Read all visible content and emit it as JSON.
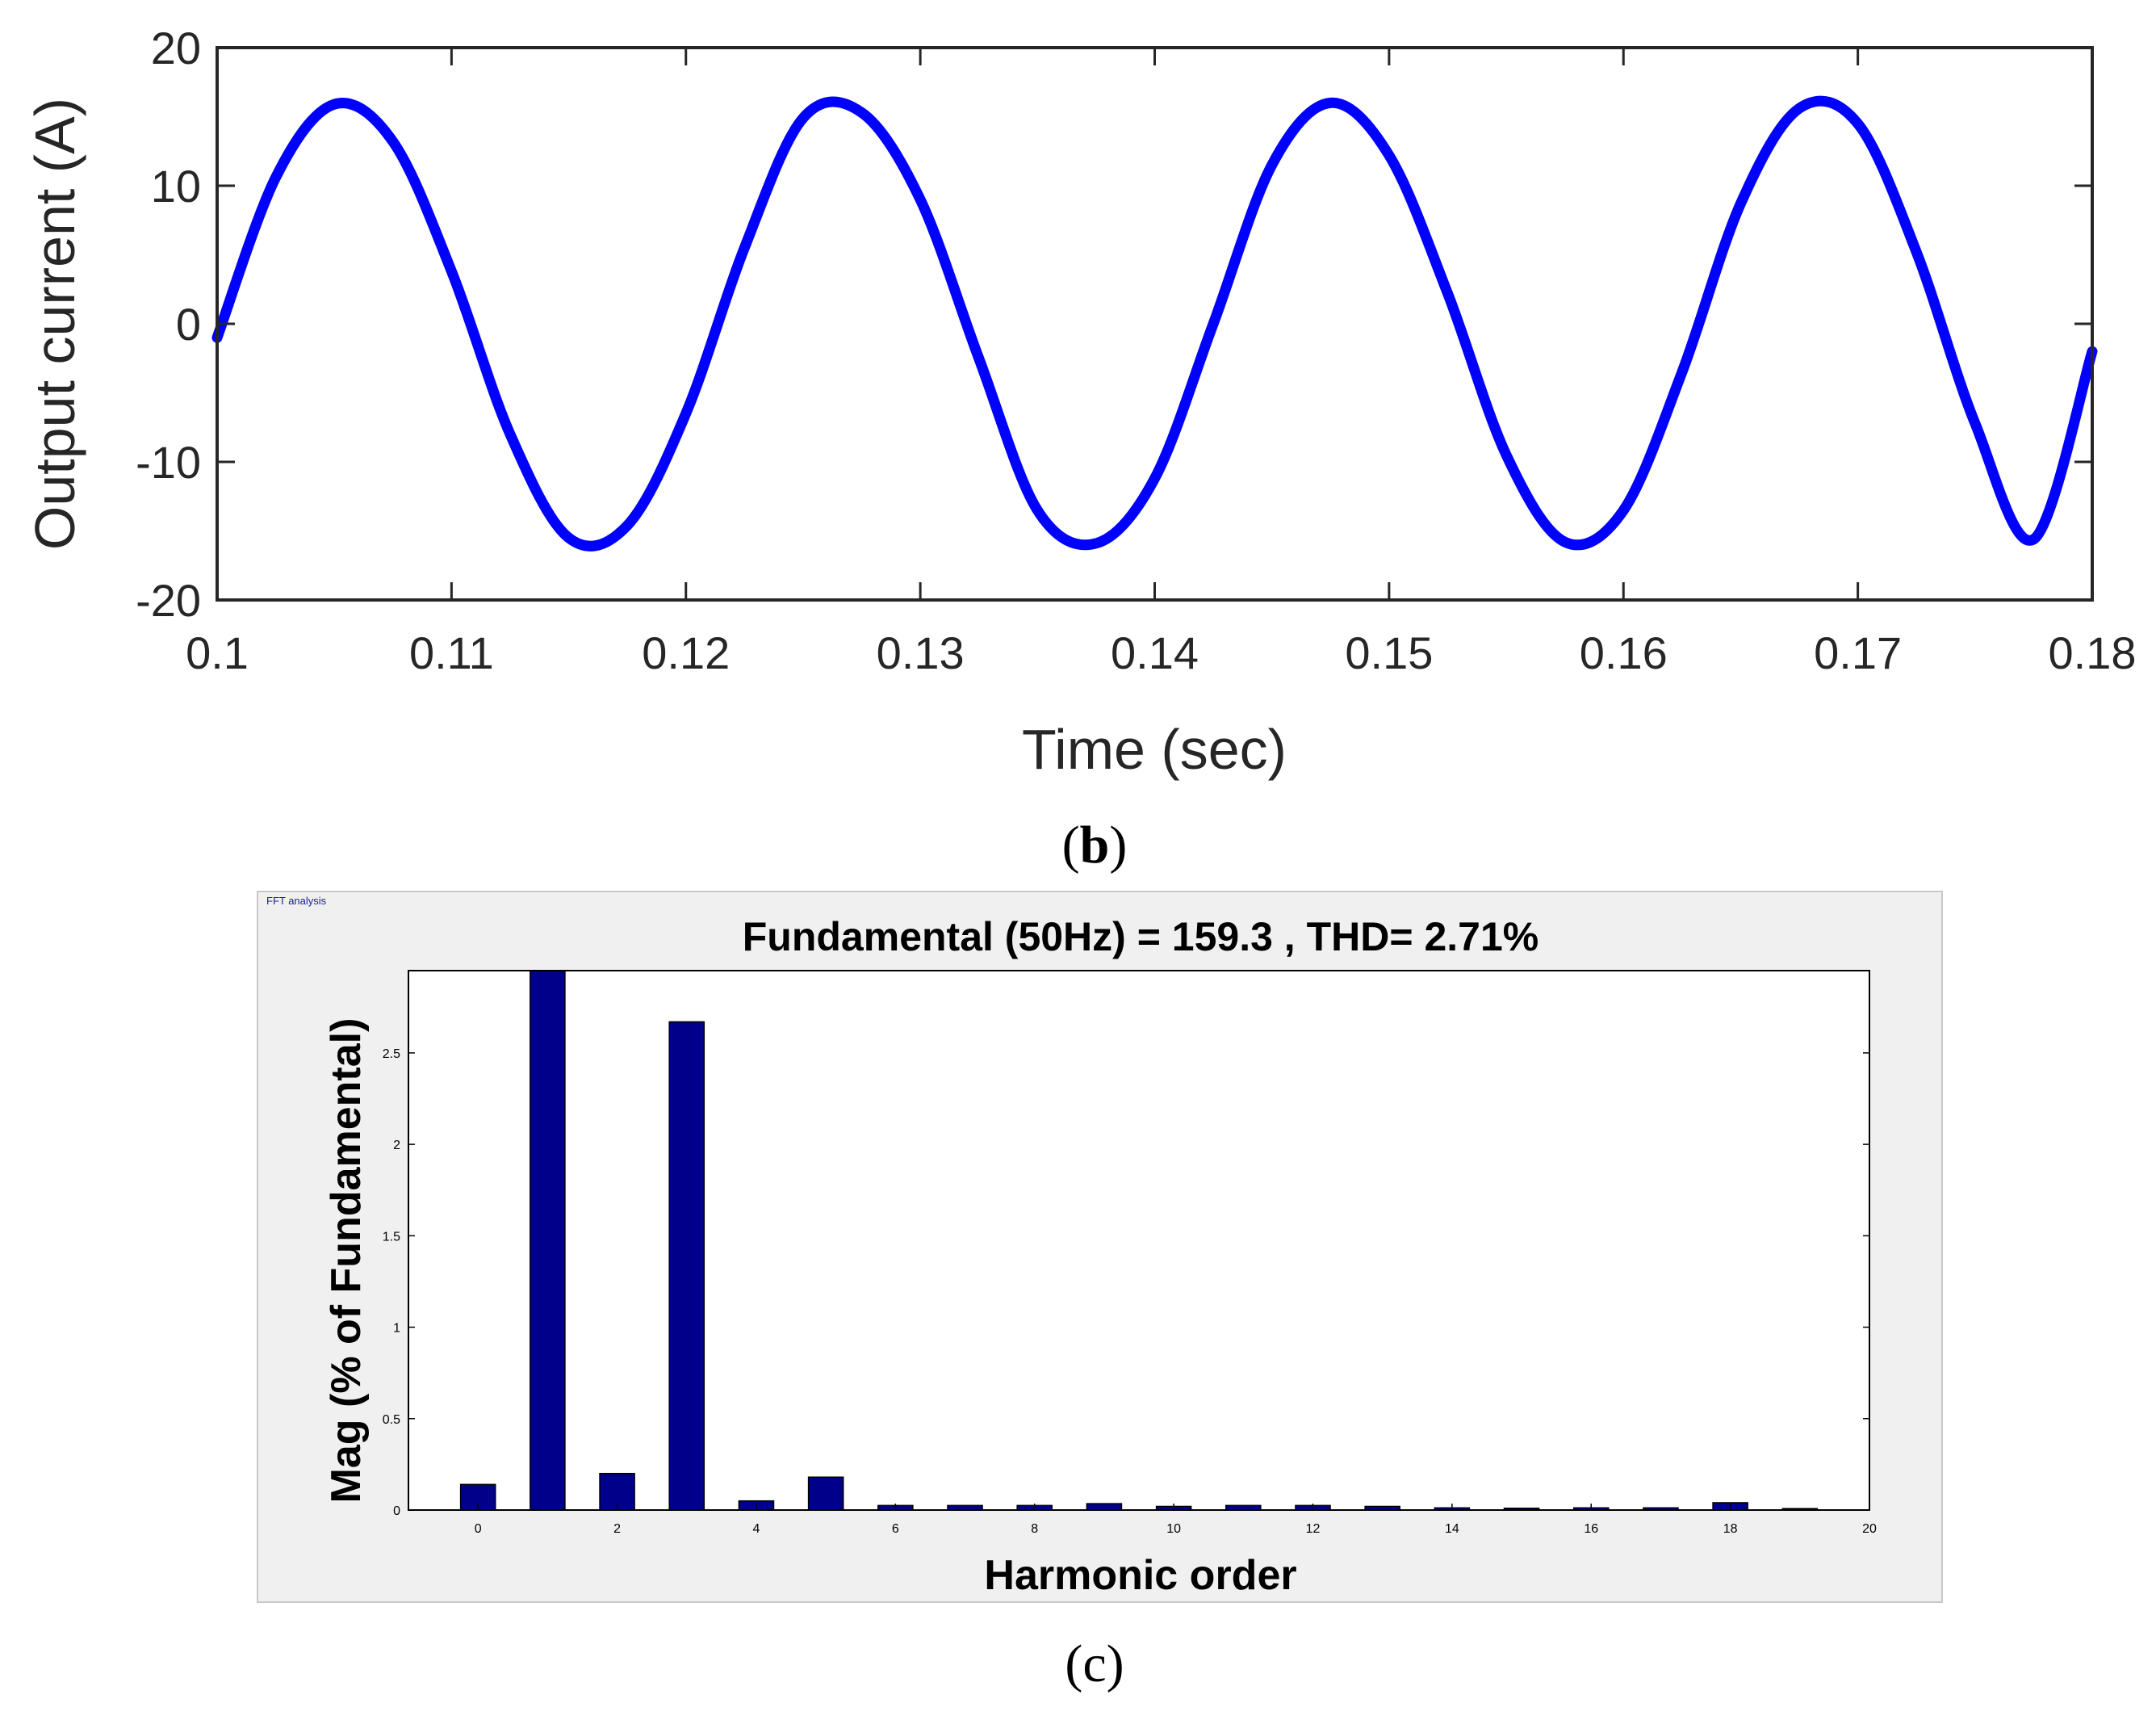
{
  "figure": {
    "panel_b_label": "b",
    "panel_c_label": "c"
  },
  "chart_data": [
    {
      "type": "line",
      "xlabel": "Time (sec)",
      "ylabel": "Output current (A)",
      "xlim": [
        0.1,
        0.18
      ],
      "ylim": [
        -20,
        20
      ],
      "xticks": [
        0.1,
        0.11,
        0.12,
        0.13,
        0.14,
        0.15,
        0.16,
        0.17,
        0.18
      ],
      "xtick_labels": [
        "0.1",
        "0.11",
        "0.12",
        "0.13",
        "0.14",
        "0.15",
        "0.16",
        "0.17",
        "0.18"
      ],
      "yticks": [
        -20,
        -10,
        0,
        10,
        20
      ],
      "ytick_labels": [
        "-20",
        "-10",
        "0",
        "10",
        "20"
      ],
      "series": [
        {
          "color": "#0000ff",
          "x": [
            0.1,
            0.1025,
            0.105,
            0.1075,
            0.11,
            0.1125,
            0.115,
            0.1175,
            0.12,
            0.1225,
            0.125,
            0.1275,
            0.13,
            0.1325,
            0.135,
            0.1375,
            0.14,
            0.1425,
            0.145,
            0.1475,
            0.15,
            0.1525,
            0.155,
            0.1575,
            0.16,
            0.1625,
            0.165,
            0.1675,
            0.17,
            0.1725,
            0.175,
            0.1775,
            0.18
          ],
          "y": [
            -1.0,
            10.6,
            15.9,
            13.2,
            3.8,
            -8.0,
            -15.5,
            -14.6,
            -6.5,
            5.5,
            14.9,
            15.3,
            9.0,
            -2.5,
            -13.5,
            -15.9,
            -11.2,
            0.0,
            11.5,
            16.0,
            12.2,
            2.2,
            -9.5,
            -15.8,
            -13.5,
            -3.5,
            8.7,
            15.6,
            14.5,
            5.2,
            -7.2,
            -15.6,
            -2.0
          ]
        }
      ],
      "grid": false,
      "legend": "none"
    },
    {
      "type": "bar",
      "window_title": "FFT analysis",
      "title": "Fundamental (50Hz) = 159.3 , THD= 2.71%",
      "xlabel": "Harmonic order",
      "ylabel": "Mag (% of Fundamental)",
      "xlim": [
        -1,
        20
      ],
      "ylim": [
        0,
        2.95
      ],
      "xticks": [
        0,
        2,
        4,
        6,
        8,
        10,
        12,
        14,
        16,
        18,
        20
      ],
      "xtick_labels": [
        "0",
        "2",
        "4",
        "6",
        "8",
        "10",
        "12",
        "14",
        "16",
        "18",
        "20"
      ],
      "yticks": [
        0,
        0.5,
        1,
        1.5,
        2,
        2.5
      ],
      "ytick_labels": [
        "0",
        "0.5",
        "1",
        "1.5",
        "2",
        "2.5"
      ],
      "categories": [
        0,
        1,
        2,
        3,
        4,
        5,
        6,
        7,
        8,
        9,
        10,
        11,
        12,
        13,
        14,
        15,
        16,
        17,
        18,
        19
      ],
      "values": [
        0.14,
        2.95,
        0.2,
        2.67,
        0.05,
        0.18,
        0.025,
        0.025,
        0.025,
        0.035,
        0.02,
        0.025,
        0.025,
        0.02,
        0.012,
        0.01,
        0.012,
        0.012,
        0.04,
        0.008
      ],
      "bar_color": "#00008b",
      "grid": false,
      "legend": "none"
    }
  ]
}
